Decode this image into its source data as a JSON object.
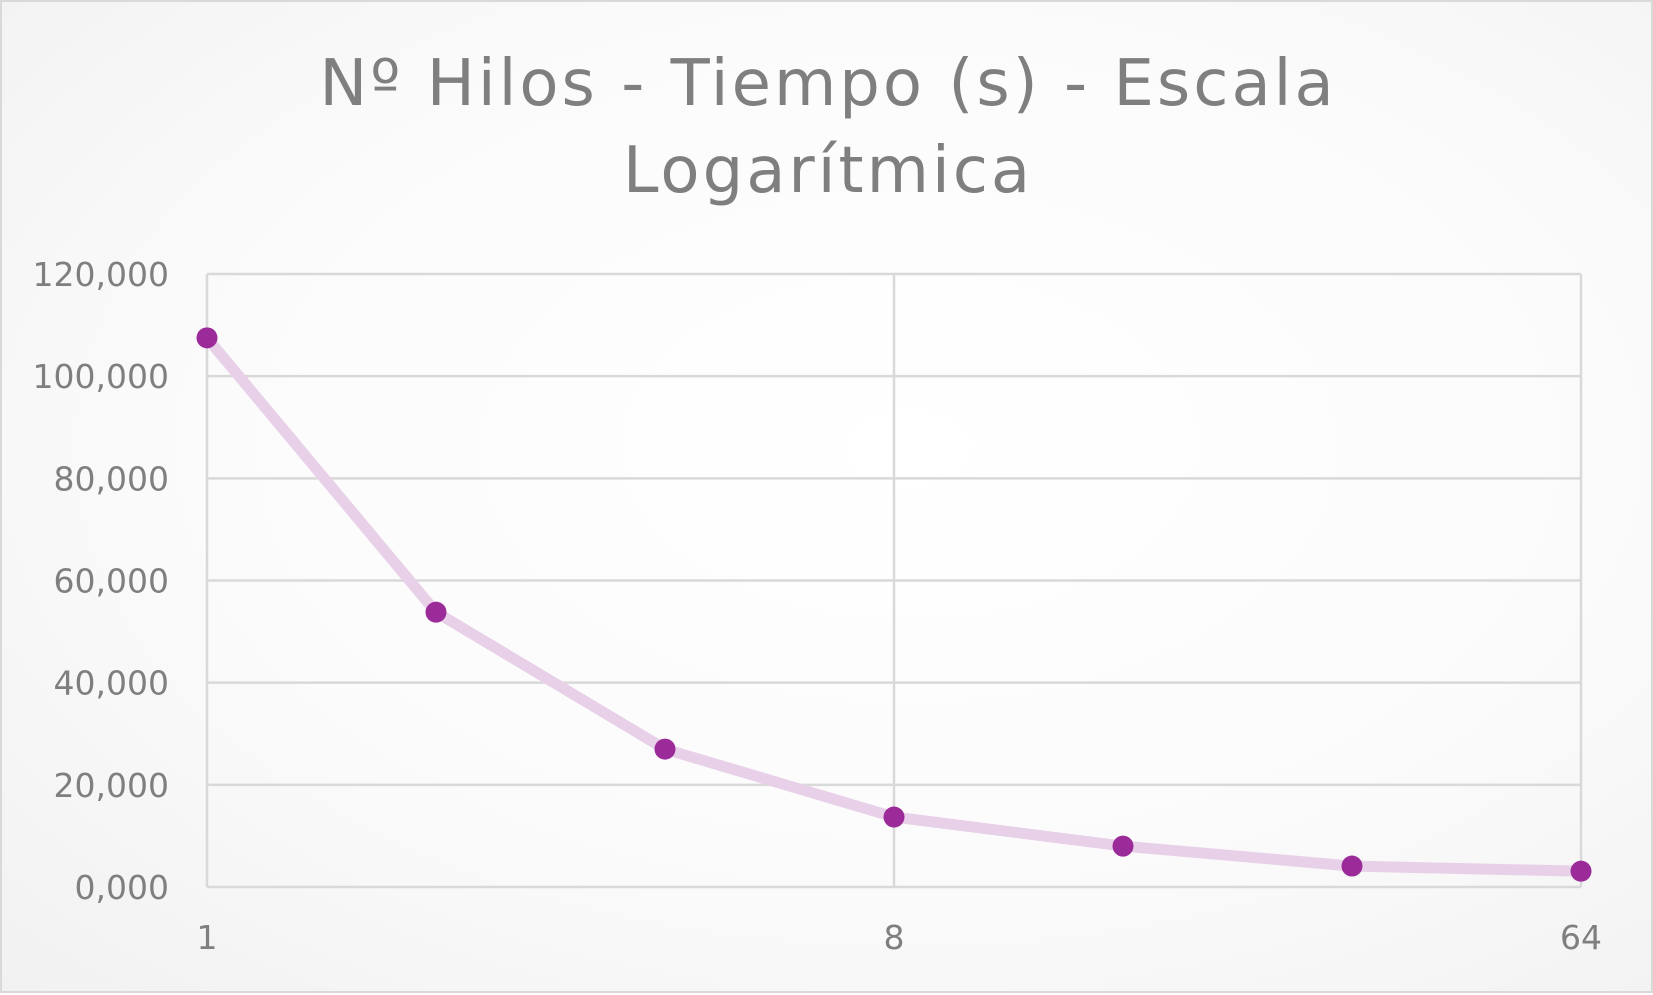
{
  "chart_data": {
    "type": "line",
    "title_lines": [
      "Nº Hilos - Tiempo (s) - Escala",
      "Logarítmica"
    ],
    "title": "Nº Hilos - Tiempo (s) - Escala Logarítmica",
    "xlabel": "",
    "ylabel": "",
    "x_scale": "log2",
    "xlim": [
      1,
      64
    ],
    "ylim": [
      0,
      120
    ],
    "x_ticks": [
      1,
      8,
      64
    ],
    "x_tick_labels": [
      "1",
      "8",
      "64"
    ],
    "y_ticks": [
      0,
      20,
      40,
      60,
      80,
      100,
      120
    ],
    "y_tick_labels": [
      "0,000",
      "20,000",
      "40,000",
      "60,000",
      "80,000",
      "100,000",
      "120,000"
    ],
    "grid": true,
    "legend": "none",
    "series": [
      {
        "name": "Tiempo (s)",
        "color": "#9b2b99",
        "line_color": "#e8d1e8",
        "x": [
          1,
          2,
          4,
          8,
          16,
          32,
          64
        ],
        "y": [
          107.5,
          53.8,
          27.0,
          13.7,
          8.0,
          4.1,
          3.1
        ]
      }
    ]
  }
}
